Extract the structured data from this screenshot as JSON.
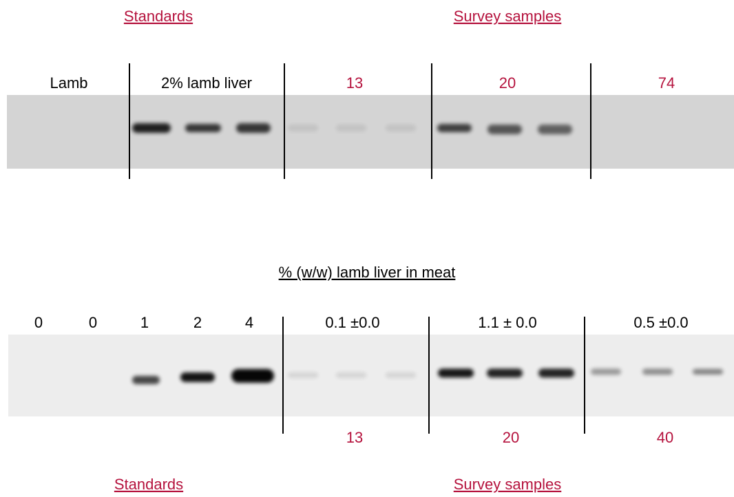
{
  "top_panel": {
    "headers": [
      "Standards",
      "Survey samples"
    ],
    "lane_labels": [
      "Lamb",
      "2% lamb liver",
      "13",
      "20",
      "74"
    ]
  },
  "caption": "% (w/w) lamb liver in meat",
  "bottom_panel": {
    "lane_labels": [
      "0",
      "0",
      "1",
      "2",
      "4",
      "0.1 ±0.0",
      "1.1 ± 0.0",
      "0.5 ±0.0"
    ],
    "sample_ids": [
      "13",
      "20",
      "40"
    ],
    "headers": [
      "Standards",
      "Survey samples"
    ]
  }
}
